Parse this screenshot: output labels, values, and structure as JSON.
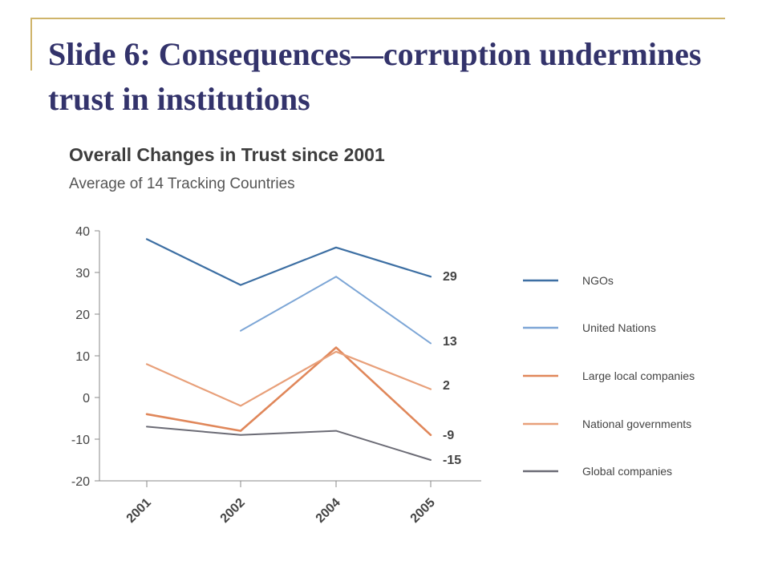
{
  "slide": {
    "title": "Slide 6: Consequences—corruption undermines trust in institutions",
    "accent_color": "#cfb46a",
    "title_color": "#33336b"
  },
  "chart_data": {
    "type": "line",
    "title": "Overall Changes in Trust since 2001",
    "subtitle": "Average of 14 Tracking Countries",
    "categories": [
      "2001",
      "2002",
      "2004",
      "2005"
    ],
    "ylim": [
      -20,
      40
    ],
    "yticks": [
      40,
      30,
      20,
      10,
      0,
      -10,
      -20
    ],
    "legend_position": "right",
    "series": [
      {
        "name": "NGOs",
        "values": [
          38,
          27,
          36,
          29
        ],
        "end_label": "29",
        "color": "#3d6fa3",
        "width": 2.2
      },
      {
        "name": "United Nations",
        "values": [
          null,
          16,
          29,
          13
        ],
        "end_label": "13",
        "color": "#7da6d6",
        "width": 2.0
      },
      {
        "name": "Large local companies",
        "values": [
          -4,
          -8,
          12,
          -9
        ],
        "end_label": "-9",
        "color": "#e0875a",
        "width": 2.6
      },
      {
        "name": "National governments",
        "values": [
          8,
          -2,
          11,
          2
        ],
        "end_label": "2",
        "color": "#e8a07a",
        "width": 2.2
      },
      {
        "name": "Global companies",
        "values": [
          -7,
          -9,
          -8,
          -15
        ],
        "end_label": "-15",
        "color": "#6b6b75",
        "width": 2.0
      }
    ]
  }
}
